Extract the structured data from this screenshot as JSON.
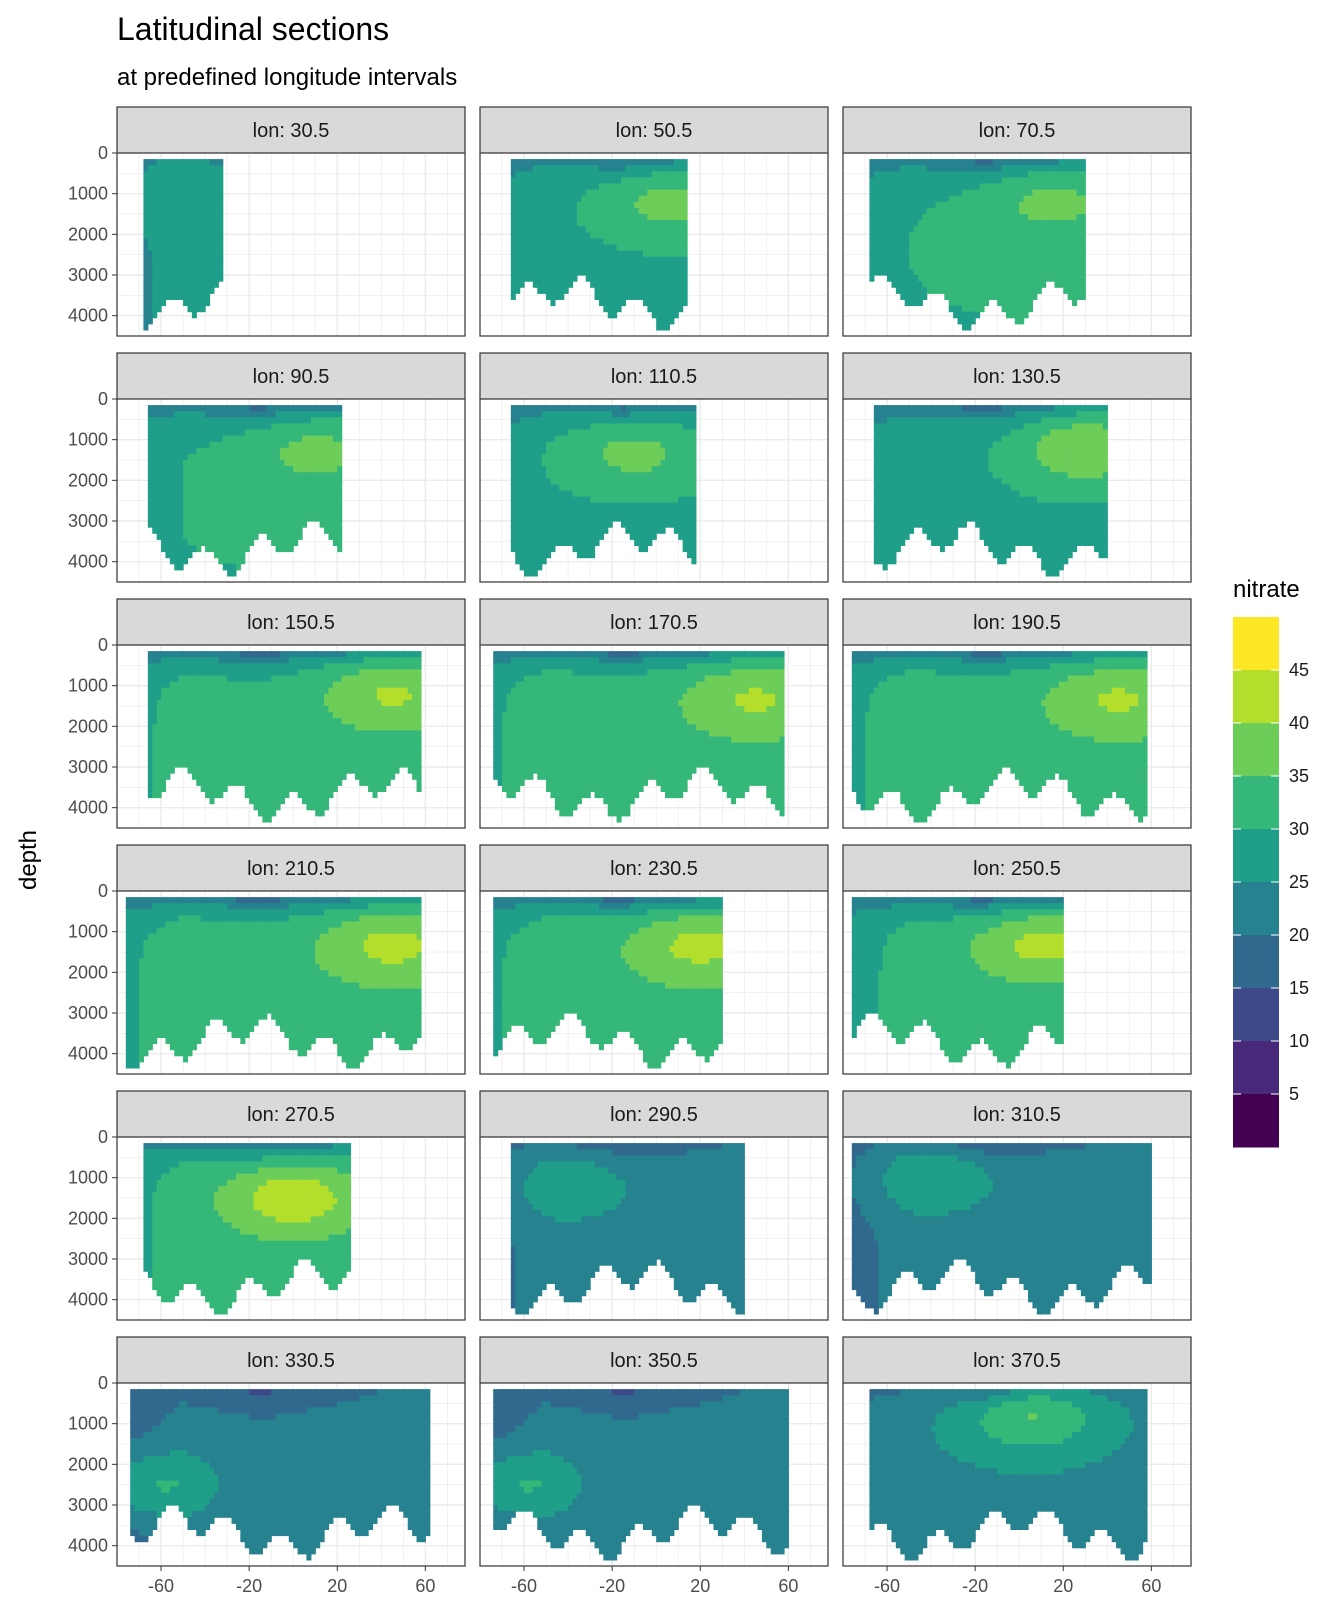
{
  "chart_data": {
    "type": "heatmap",
    "title": "Latitudinal sections",
    "subtitle": "at predefined longitude intervals",
    "xlabel": "",
    "ylabel": "depth",
    "x_ticks": [
      -60,
      -20,
      20,
      60
    ],
    "x_tick_labels": [
      "-60",
      "-20",
      "20",
      "60"
    ],
    "xlim": [
      -80,
      78
    ],
    "y_ticks": [
      0,
      1000,
      2000,
      3000,
      4000
    ],
    "y_tick_labels": [
      "0",
      "1000",
      "2000",
      "3000",
      "4000"
    ],
    "ylim": [
      0,
      4500
    ],
    "y_reversed": true,
    "grid": true,
    "legend": {
      "title": "nitrate",
      "position": "right",
      "breaks": [
        0,
        5,
        10,
        15,
        20,
        25,
        30,
        35,
        40,
        45,
        50
      ],
      "labels": [
        "5",
        "10",
        "15",
        "20",
        "25",
        "30",
        "35",
        "40",
        "45"
      ],
      "colors": [
        "#440154",
        "#482878",
        "#3E4989",
        "#31688E",
        "#26828E",
        "#1F9E89",
        "#35B779",
        "#6DCD59",
        "#B4DE2C",
        "#FDE725"
      ]
    },
    "panels": [
      {
        "label": "lon: 30.5",
        "lat_range": [
          -68,
          -32
        ],
        "deep_value": 27,
        "max_value": 30,
        "max_lat": -40,
        "max_depth": 1200,
        "min_value": 15
      },
      {
        "label": "lon: 50.5",
        "lat_range": [
          -66,
          14
        ],
        "deep_value": 29,
        "max_value": 37,
        "max_lat": 5,
        "max_depth": 1200,
        "min_value": 10
      },
      {
        "label": "lon: 70.5",
        "lat_range": [
          -68,
          30
        ],
        "deep_value": 30,
        "max_value": 37,
        "max_lat": 15,
        "max_depth": 1200,
        "min_value": 8
      },
      {
        "label": "lon: 90.5",
        "lat_range": [
          -66,
          22
        ],
        "deep_value": 30,
        "max_value": 37,
        "max_lat": 10,
        "max_depth": 1300,
        "min_value": 8
      },
      {
        "label": "lon: 110.5",
        "lat_range": [
          -66,
          18
        ],
        "deep_value": 29,
        "max_value": 37,
        "max_lat": -10,
        "max_depth": 1300,
        "min_value": 8
      },
      {
        "label": "lon: 130.5",
        "lat_range": [
          -66,
          40
        ],
        "deep_value": 29,
        "max_value": 40,
        "max_lat": 30,
        "max_depth": 1200,
        "min_value": 8
      },
      {
        "label": "lon: 150.5",
        "lat_range": [
          -66,
          58
        ],
        "deep_value": 32,
        "max_value": 41,
        "max_lat": 45,
        "max_depth": 1200,
        "min_value": 6
      },
      {
        "label": "lon: 170.5",
        "lat_range": [
          -74,
          58
        ],
        "deep_value": 33,
        "max_value": 41,
        "max_lat": 45,
        "max_depth": 1300,
        "min_value": 6
      },
      {
        "label": "lon: 190.5",
        "lat_range": [
          -76,
          58
        ],
        "deep_value": 33,
        "max_value": 41,
        "max_lat": 45,
        "max_depth": 1300,
        "min_value": 6
      },
      {
        "label": "lon: 210.5",
        "lat_range": [
          -76,
          58
        ],
        "deep_value": 33,
        "max_value": 42,
        "max_lat": 45,
        "max_depth": 1300,
        "min_value": 5
      },
      {
        "label": "lon: 230.5",
        "lat_range": [
          -74,
          30
        ],
        "deep_value": 33,
        "max_value": 42,
        "max_lat": 20,
        "max_depth": 1300,
        "min_value": 5
      },
      {
        "label": "lon: 250.5",
        "lat_range": [
          -76,
          20
        ],
        "deep_value": 32,
        "max_value": 42,
        "max_lat": 10,
        "max_depth": 1300,
        "min_value": 5
      },
      {
        "label": "lon: 270.5",
        "lat_range": [
          -68,
          26
        ],
        "deep_value": 32,
        "max_value": 44,
        "max_lat": 0,
        "max_depth": 1500,
        "min_value": 8
      },
      {
        "label": "lon: 290.5",
        "lat_range": [
          -66,
          40
        ],
        "deep_value": 22,
        "max_value": 29,
        "max_lat": -40,
        "max_depth": 1200,
        "min_value": 8
      },
      {
        "label": "lon: 310.5",
        "lat_range": [
          -76,
          60
        ],
        "deep_value": 22,
        "max_value": 30,
        "max_lat": -40,
        "max_depth": 1000,
        "min_value": 8
      },
      {
        "label": "lon: 330.5",
        "lat_range": [
          -74,
          62
        ],
        "deep_value": 21,
        "max_value": 32,
        "max_lat": -65,
        "max_depth": 2500,
        "min_value": 8
      },
      {
        "label": "lon: 350.5",
        "lat_range": [
          -74,
          60
        ],
        "deep_value": 21,
        "max_value": 32,
        "max_lat": -65,
        "max_depth": 2500,
        "min_value": 8
      },
      {
        "label": "lon: 370.5",
        "lat_range": [
          -68,
          58
        ],
        "deep_value": 24,
        "max_value": 36,
        "max_lat": 5,
        "max_depth": 800,
        "min_value": 8
      }
    ]
  }
}
